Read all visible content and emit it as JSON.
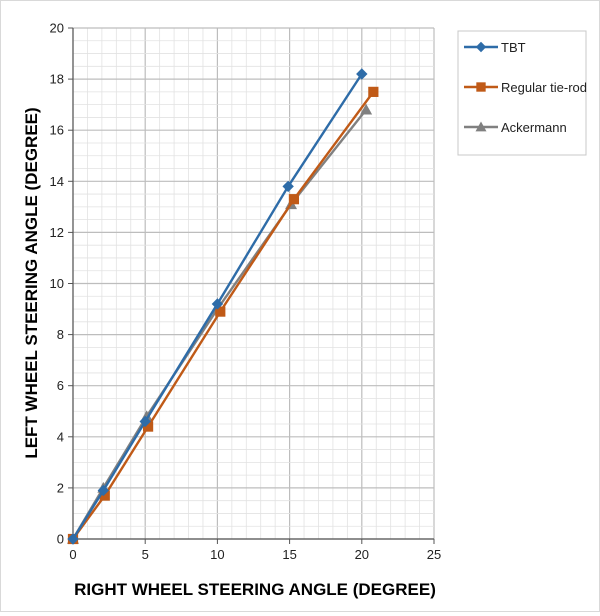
{
  "chart_data": {
    "type": "line",
    "xlabel": "RIGHT WHEEL STEERING ANGLE (DEGREE)",
    "ylabel": "LEFT WHEEL STEERING ANGLE (DEGREE)",
    "xlim": [
      0,
      25
    ],
    "ylim": [
      0,
      20
    ],
    "xticks": [
      0,
      5,
      10,
      15,
      20,
      25
    ],
    "yticks": [
      0,
      2,
      4,
      6,
      8,
      10,
      12,
      14,
      16,
      18,
      20
    ],
    "grid": true,
    "minor_grid": true,
    "legend_position": "right",
    "series": [
      {
        "name": "TBT",
        "color": "#2e6ca8",
        "marker": "diamond",
        "x": [
          0,
          2.1,
          5.0,
          10.0,
          14.9,
          20.0
        ],
        "y": [
          0,
          1.9,
          4.6,
          9.2,
          13.8,
          18.2
        ]
      },
      {
        "name": "Regular tie-rod",
        "color": "#c05a17",
        "marker": "square",
        "x": [
          0,
          2.2,
          5.2,
          10.2,
          15.3,
          20.8
        ],
        "y": [
          0,
          1.7,
          4.4,
          8.9,
          13.3,
          17.5
        ]
      },
      {
        "name": "Ackermann",
        "color": "#808080",
        "marker": "triangle",
        "x": [
          0,
          2.1,
          5.1,
          10.0,
          15.1,
          20.3
        ],
        "y": [
          0,
          2.0,
          4.8,
          9.0,
          13.1,
          16.8
        ]
      }
    ]
  }
}
